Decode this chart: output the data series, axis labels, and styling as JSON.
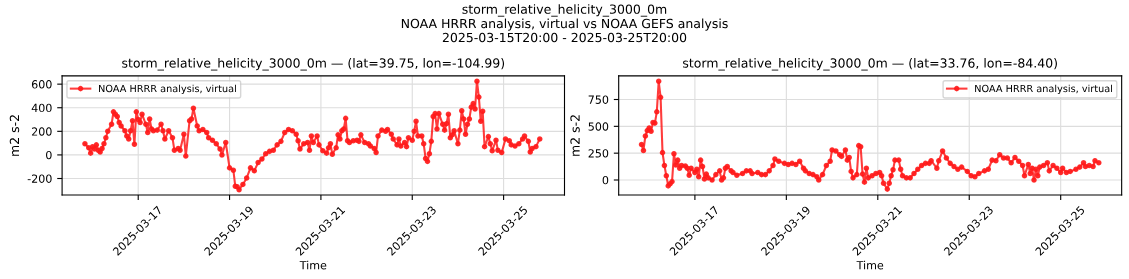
{
  "chart_data": [
    {
      "type": "line",
      "title": "storm_relative_helicity_3000_0m — (lat=39.75, lon=-104.99)",
      "xlabel": "Time",
      "ylabel": "m2 s-2",
      "annotations": [
        "storm_relative_helicity_3000_0m",
        "NOAA HRRR analysis, virtual vs NOAA GEFS analysis",
        "2025-03-15T20:00 - 2025-03-25T20:00"
      ],
      "xlim": [
        "2025-03-15T08:00",
        "2025-03-26T08:00"
      ],
      "xticks": [
        "2025-03-17",
        "2025-03-19",
        "2025-03-21",
        "2025-03-23",
        "2025-03-25"
      ],
      "ylim": [
        -340,
        670
      ],
      "yticks": [
        -200,
        0,
        200,
        400,
        600
      ],
      "grid": true,
      "legend": "top left",
      "marker": "circle",
      "line_style": "solid",
      "series": [
        {
          "name": "NOAA HRRR analysis, virtual",
          "color": "#ff1a1a",
          "x": [
            "2025-03-15T20:00",
            "2025-03-15T22:00",
            "2025-03-15T23:00",
            "2025-03-16T00:00",
            "2025-03-16T01:00",
            "2025-03-16T02:00",
            "2025-03-16T03:00",
            "2025-03-16T04:00",
            "2025-03-16T05:00",
            "2025-03-16T06:00",
            "2025-03-16T07:00",
            "2025-03-16T08:00",
            "2025-03-16T10:00",
            "2025-03-16T11:00",
            "2025-03-16T12:00",
            "2025-03-16T13:00",
            "2025-03-16T14:00",
            "2025-03-16T15:00",
            "2025-03-16T17:00",
            "2025-03-16T18:00",
            "2025-03-16T19:00",
            "2025-03-16T20:00",
            "2025-03-16T21:00",
            "2025-03-16T22:00",
            "2025-03-16T23:00",
            "2025-03-17T00:00",
            "2025-03-17T01:00",
            "2025-03-17T02:00",
            "2025-03-17T04:00",
            "2025-03-17T05:00",
            "2025-03-17T06:00",
            "2025-03-17T07:00",
            "2025-03-17T08:00",
            "2025-03-17T10:00",
            "2025-03-17T12:00",
            "2025-03-17T13:00",
            "2025-03-17T14:00",
            "2025-03-17T16:00",
            "2025-03-17T18:00",
            "2025-03-17T19:00",
            "2025-03-17T21:00",
            "2025-03-17T22:00",
            "2025-03-18T00:00",
            "2025-03-18T01:00",
            "2025-03-18T03:00",
            "2025-03-18T04:00",
            "2025-03-18T05:00",
            "2025-03-18T07:00",
            "2025-03-18T08:00",
            "2025-03-18T10:00",
            "2025-03-18T12:00",
            "2025-03-18T13:00",
            "2025-03-18T15:00",
            "2025-03-18T17:00",
            "2025-03-18T19:00",
            "2025-03-18T20:00",
            "2025-03-18T22:00",
            "2025-03-19T00:00",
            "2025-03-19T02:00",
            "2025-03-19T03:00",
            "2025-03-19T04:00",
            "2025-03-19T05:00",
            "2025-03-19T07:00",
            "2025-03-19T09:00",
            "2025-03-19T11:00",
            "2025-03-19T13:00",
            "2025-03-19T15:00",
            "2025-03-19T17:00",
            "2025-03-19T19:00",
            "2025-03-19T21:00",
            "2025-03-19T23:00",
            "2025-03-20T01:00",
            "2025-03-20T03:00",
            "2025-03-20T05:00",
            "2025-03-20T07:00",
            "2025-03-20T09:00",
            "2025-03-20T11:00",
            "2025-03-20T12:00",
            "2025-03-20T13:00",
            "2025-03-20T15:00",
            "2025-03-20T17:00",
            "2025-03-20T18:00",
            "2025-03-20T19:00",
            "2025-03-20T20:00",
            "2025-03-20T22:00",
            "2025-03-20T23:00",
            "2025-03-21T01:00",
            "2025-03-21T03:00",
            "2025-03-21T04:00",
            "2025-03-21T05:00",
            "2025-03-21T06:00",
            "2025-03-21T08:00",
            "2025-03-21T09:00",
            "2025-03-21T10:00",
            "2025-03-21T11:00",
            "2025-03-21T12:00",
            "2025-03-21T13:00",
            "2025-03-21T14:00",
            "2025-03-21T15:00",
            "2025-03-21T17:00",
            "2025-03-21T19:00",
            "2025-03-21T20:00",
            "2025-03-21T21:00",
            "2025-03-21T23:00",
            "2025-03-22T01:00",
            "2025-03-22T02:00",
            "2025-03-22T04:00",
            "2025-03-22T05:00",
            "2025-03-22T06:00",
            "2025-03-22T08:00",
            "2025-03-22T10:00",
            "2025-03-22T11:00",
            "2025-03-22T13:00",
            "2025-03-22T14:00",
            "2025-03-22T16:00",
            "2025-03-22T17:00",
            "2025-03-22T18:00",
            "2025-03-22T20:00",
            "2025-03-22T21:00",
            "2025-03-22T22:00",
            "2025-03-23T00:00",
            "2025-03-23T01:00",
            "2025-03-23T02:00",
            "2025-03-23T03:00",
            "2025-03-23T05:00",
            "2025-03-23T06:00",
            "2025-03-23T07:00",
            "2025-03-23T08:00",
            "2025-03-23T09:00",
            "2025-03-23T10:00",
            "2025-03-23T11:00",
            "2025-03-23T12:00",
            "2025-03-23T13:00",
            "2025-03-23T14:00",
            "2025-03-23T16:00",
            "2025-03-23T17:00",
            "2025-03-23T18:00",
            "2025-03-23T19:00",
            "2025-03-23T20:00",
            "2025-03-23T21:00",
            "2025-03-23T22:00",
            "2025-03-24T00:00",
            "2025-03-24T01:00",
            "2025-03-24T02:00",
            "2025-03-24T03:00",
            "2025-03-24T04:00",
            "2025-03-24T05:00",
            "2025-03-24T06:00",
            "2025-03-24T07:00",
            "2025-03-24T08:00",
            "2025-03-24T09:00",
            "2025-03-24T10:00",
            "2025-03-24T11:00",
            "2025-03-24T12:00",
            "2025-03-24T13:00",
            "2025-03-24T14:00",
            "2025-03-24T16:00",
            "2025-03-24T17:00",
            "2025-03-24T18:00",
            "2025-03-24T20:00",
            "2025-03-24T21:00",
            "2025-03-24T23:00",
            "2025-03-25T01:00",
            "2025-03-25T03:00",
            "2025-03-25T04:00",
            "2025-03-25T06:00",
            "2025-03-25T08:00",
            "2025-03-25T10:00",
            "2025-03-25T11:00",
            "2025-03-25T13:00",
            "2025-03-25T14:00",
            "2025-03-25T15:00",
            "2025-03-25T17:00",
            "2025-03-25T19:00"
          ],
          "values": [
            95,
            60,
            15,
            70,
            50,
            85,
            40,
            25,
            55,
            95,
            145,
            200,
            260,
            365,
            345,
            325,
            275,
            245,
            205,
            160,
            135,
            205,
            290,
            90,
            365,
            300,
            275,
            345,
            260,
            190,
            305,
            220,
            205,
            210,
            260,
            205,
            135,
            205,
            145,
            40,
            55,
            40,
            175,
            -10,
            290,
            305,
            395,
            245,
            205,
            215,
            190,
            145,
            125,
            95,
            50,
            0,
            105,
            -110,
            -130,
            -265,
            -270,
            -295,
            -250,
            -195,
            -110,
            -135,
            -65,
            -35,
            10,
            30,
            40,
            85,
            115,
            190,
            215,
            205,
            175,
            120,
            50,
            95,
            105,
            40,
            160,
            105,
            160,
            85,
            35,
            15,
            60,
            95,
            5,
            60,
            170,
            135,
            205,
            220,
            310,
            120,
            105,
            120,
            125,
            115,
            170,
            105,
            95,
            75,
            55,
            20,
            160,
            210,
            200,
            215,
            175,
            135,
            85,
            135,
            75,
            105,
            70,
            145,
            125,
            200,
            285,
            160,
            160,
            95,
            -30,
            -55,
            10,
            115,
            325,
            350,
            220,
            350,
            260,
            210,
            265,
            345,
            145,
            170,
            205,
            95,
            210,
            375,
            305,
            175,
            260,
            305,
            405,
            435,
            390,
            625,
            490,
            285,
            370,
            70,
            155,
            95,
            35,
            125,
            40,
            20,
            135,
            120,
            85,
            75,
            95,
            135,
            160,
            115,
            25,
            55,
            70,
            135
          ]
        }
      ]
    },
    {
      "type": "line",
      "title": "storm_relative_helicity_3000_0m — (lat=33.76, lon=-84.40)",
      "xlabel": "Time",
      "ylabel": "m2 s-2",
      "xlim": [
        "2025-03-15T08:00",
        "2025-03-26T08:00"
      ],
      "xticks": [
        "2025-03-17",
        "2025-03-19",
        "2025-03-21",
        "2025-03-23",
        "2025-03-25"
      ],
      "ylim": [
        -140,
        970
      ],
      "yticks": [
        0,
        250,
        500,
        750
      ],
      "grid": true,
      "legend": "top right",
      "marker": "circle",
      "line_style": "solid",
      "series": [
        {
          "name": "NOAA HRRR analysis, virtual",
          "color": "#ff1a1a",
          "x": [
            "2025-03-15T20:00",
            "2025-03-15T21:00",
            "2025-03-15T22:00",
            "2025-03-15T23:00",
            "2025-03-16T00:00",
            "2025-03-16T01:00",
            "2025-03-16T02:00",
            "2025-03-16T03:00",
            "2025-03-16T04:00",
            "2025-03-16T05:00",
            "2025-03-16T06:00",
            "2025-03-16T07:00",
            "2025-03-16T08:00",
            "2025-03-16T09:00",
            "2025-03-16T10:00",
            "2025-03-16T11:00",
            "2025-03-16T12:00",
            "2025-03-16T13:00",
            "2025-03-16T14:00",
            "2025-03-16T15:00",
            "2025-03-16T16:00",
            "2025-03-16T17:00",
            "2025-03-16T19:00",
            "2025-03-16T20:00",
            "2025-03-16T21:00",
            "2025-03-16T22:00",
            "2025-03-17T00:00",
            "2025-03-17T01:00",
            "2025-03-17T02:00",
            "2025-03-17T03:00",
            "2025-03-17T04:00",
            "2025-03-17T05:00",
            "2025-03-17T06:00",
            "2025-03-17T07:00",
            "2025-03-17T09:00",
            "2025-03-17T11:00",
            "2025-03-17T13:00",
            "2025-03-17T14:00",
            "2025-03-17T15:00",
            "2025-03-17T16:00",
            "2025-03-17T17:00",
            "2025-03-17T19:00",
            "2025-03-17T20:00",
            "2025-03-17T22:00",
            "2025-03-18T01:00",
            "2025-03-18T03:00",
            "2025-03-18T05:00",
            "2025-03-18T06:00",
            "2025-03-18T09:00",
            "2025-03-18T11:00",
            "2025-03-18T13:00",
            "2025-03-18T15:00",
            "2025-03-18T17:00",
            "2025-03-18T18:00",
            "2025-03-18T20:00",
            "2025-03-18T23:00",
            "2025-03-19T01:00",
            "2025-03-19T03:00",
            "2025-03-19T05:00",
            "2025-03-19T07:00",
            "2025-03-19T09:00",
            "2025-03-19T10:00",
            "2025-03-19T12:00",
            "2025-03-19T14:00",
            "2025-03-19T16:00",
            "2025-03-19T17:00",
            "2025-03-19T19:00",
            "2025-03-19T21:00",
            "2025-03-19T23:00",
            "2025-03-20T00:00",
            "2025-03-20T02:00",
            "2025-03-20T04:00",
            "2025-03-20T05:00",
            "2025-03-20T07:00",
            "2025-03-20T08:00",
            "2025-03-20T09:00",
            "2025-03-20T10:00",
            "2025-03-20T11:00",
            "2025-03-20T13:00",
            "2025-03-20T14:00",
            "2025-03-20T15:00",
            "2025-03-20T16:00",
            "2025-03-20T17:00",
            "2025-03-20T18:00",
            "2025-03-20T19:00",
            "2025-03-20T21:00",
            "2025-03-20T23:00",
            "2025-03-21T01:00",
            "2025-03-21T02:00",
            "2025-03-21T03:00",
            "2025-03-21T05:00",
            "2025-03-21T06:00",
            "2025-03-21T07:00",
            "2025-03-21T08:00",
            "2025-03-21T09:00",
            "2025-03-21T11:00",
            "2025-03-21T12:00",
            "2025-03-21T13:00",
            "2025-03-21T15:00",
            "2025-03-21T17:00",
            "2025-03-21T19:00",
            "2025-03-21T21:00",
            "2025-03-21T23:00",
            "2025-03-22T01:00",
            "2025-03-22T03:00",
            "2025-03-22T04:00",
            "2025-03-22T07:00",
            "2025-03-22T08:00",
            "2025-03-22T10:00",
            "2025-03-22T12:00",
            "2025-03-22T14:00",
            "2025-03-22T16:00",
            "2025-03-22T18:00",
            "2025-03-22T20:00",
            "2025-03-22T23:00",
            "2025-03-23T01:00",
            "2025-03-23T03:00",
            "2025-03-23T05:00",
            "2025-03-23T08:00",
            "2025-03-23T10:00",
            "2025-03-23T12:00",
            "2025-03-23T14:00",
            "2025-03-23T16:00",
            "2025-03-23T18:00",
            "2025-03-23T20:00",
            "2025-03-23T22:00",
            "2025-03-24T00:00",
            "2025-03-24T02:00",
            "2025-03-24T04:00",
            "2025-03-24T05:00",
            "2025-03-24T07:00",
            "2025-03-24T08:00",
            "2025-03-24T09:00",
            "2025-03-24T10:00",
            "2025-03-24T11:00",
            "2025-03-24T12:00",
            "2025-03-24T13:00",
            "2025-03-24T15:00",
            "2025-03-24T17:00",
            "2025-03-24T18:00",
            "2025-03-24T20:00",
            "2025-03-24T22:00",
            "2025-03-25T00:00",
            "2025-03-25T01:00",
            "2025-03-25T03:00",
            "2025-03-25T05:00",
            "2025-03-25T08:00",
            "2025-03-25T10:00",
            "2025-03-25T12:00",
            "2025-03-25T13:00",
            "2025-03-25T15:00",
            "2025-03-25T17:00",
            "2025-03-25T18:00",
            "2025-03-25T20:00"
          ],
          "values": [
            330,
            275,
            410,
            460,
            485,
            455,
            535,
            530,
            635,
            920,
            770,
            255,
            135,
            40,
            -55,
            -35,
            -15,
            245,
            140,
            185,
            110,
            135,
            130,
            110,
            45,
            110,
            70,
            100,
            30,
            185,
            125,
            10,
            55,
            20,
            0,
            50,
            85,
            0,
            20,
            110,
            125,
            85,
            70,
            45,
            60,
            85,
            85,
            60,
            70,
            50,
            50,
            85,
            135,
            195,
            175,
            155,
            145,
            155,
            145,
            175,
            110,
            85,
            60,
            50,
            30,
            0,
            50,
            135,
            175,
            280,
            270,
            235,
            220,
            280,
            185,
            210,
            80,
            20,
            50,
            320,
            310,
            55,
            -20,
            110,
            20,
            40,
            60,
            70,
            40,
            -30,
            -85,
            -30,
            40,
            95,
            185,
            185,
            100,
            40,
            20,
            20,
            60,
            100,
            135,
            155,
            155,
            180,
            110,
            180,
            270,
            205,
            155,
            125,
            100,
            120,
            80,
            40,
            30,
            60,
            85,
            100,
            185,
            180,
            235,
            205,
            205,
            160,
            210,
            175,
            135,
            40,
            145,
            60,
            110,
            0,
            100,
            40,
            120,
            135,
            160,
            85,
            135,
            110,
            70,
            110,
            70,
            80,
            100,
            120,
            160,
            125,
            135,
            125,
            180,
            160
          ]
        }
      ]
    }
  ]
}
